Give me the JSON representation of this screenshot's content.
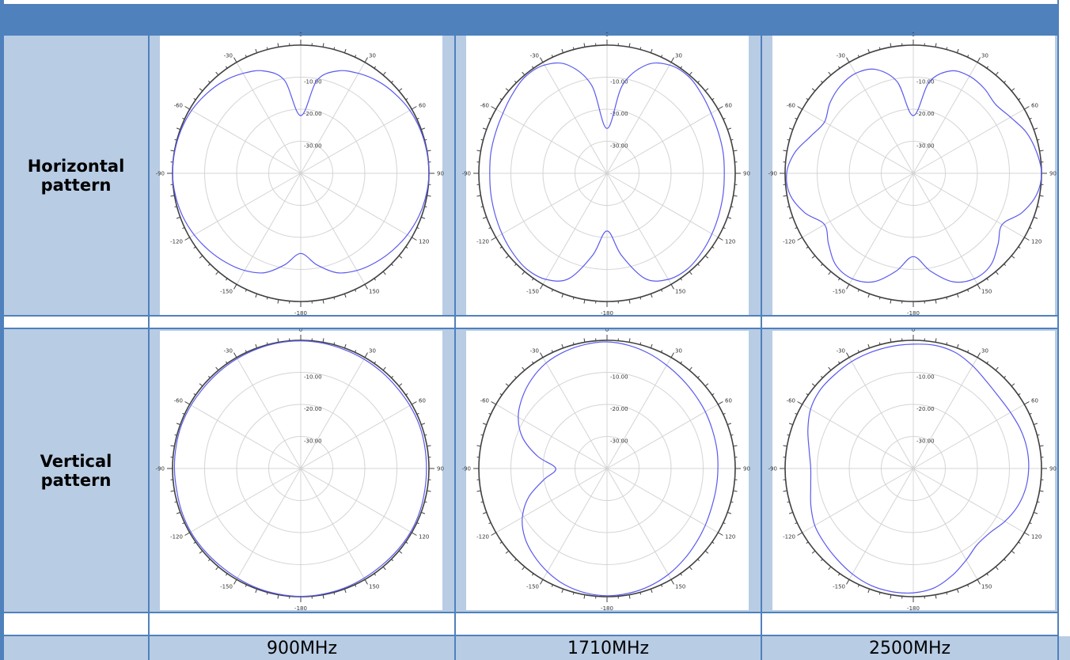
{
  "rows": [
    {
      "label": "Horizontal\npattern"
    },
    {
      "label": "Vertical\npattern"
    }
  ],
  "columns": [
    {
      "frequency": "900MHz"
    },
    {
      "frequency": "1710MHz"
    },
    {
      "frequency": "2500MHz"
    }
  ],
  "colors": {
    "header": "#4f81bd",
    "cell": "#b8cce4",
    "grid": "#4f81bd",
    "trace": "#5a5aee",
    "polar_grid": "#d4d4d4",
    "outer_circle": "#404040"
  },
  "chart_data": [
    {
      "type": "polar",
      "row": "Horizontal pattern",
      "column": "900MHz",
      "rlim": [
        -40,
        0
      ],
      "ring_labels": [
        "-10.00",
        "-20.00",
        "-30.00"
      ],
      "angle_labels": [
        "0",
        "30",
        "60",
        "90",
        "120",
        "150",
        "-180",
        "-150",
        "-120",
        "-90",
        "-60",
        "-30"
      ],
      "angles": [
        0,
        10,
        20,
        30,
        40,
        50,
        60,
        70,
        80,
        90,
        100,
        110,
        120,
        130,
        140,
        150,
        160,
        170,
        180,
        190,
        200,
        210,
        220,
        230,
        240,
        250,
        260,
        270,
        280,
        290,
        300,
        310,
        320,
        330,
        340,
        350
      ],
      "values": [
        -22,
        -10.5,
        -6,
        -4,
        -2.5,
        -1.5,
        -0.7,
        -0.3,
        -0.1,
        0,
        -0.3,
        -0.8,
        -1.6,
        -2.6,
        -3.7,
        -5,
        -7,
        -11,
        -15,
        -11,
        -7,
        -5,
        -3.7,
        -2.6,
        -1.6,
        -0.8,
        -0.3,
        0,
        -0.1,
        -0.3,
        -0.7,
        -1.5,
        -2.5,
        -4,
        -6,
        -10.5
      ]
    },
    {
      "type": "polar",
      "row": "Horizontal pattern",
      "column": "1710MHz",
      "rlim": [
        -40,
        0
      ],
      "ring_labels": [
        "-10.00",
        "-20.00",
        "-30.00"
      ],
      "angle_labels": [
        "0",
        "30",
        "60",
        "90",
        "120",
        "150",
        "-180",
        "-150",
        "-120",
        "-90",
        "-60",
        "-30"
      ],
      "angles": [
        0,
        10,
        20,
        30,
        40,
        50,
        60,
        70,
        80,
        90,
        100,
        110,
        120,
        130,
        140,
        150,
        160,
        170,
        180,
        190,
        200,
        210,
        220,
        230,
        240,
        250,
        260,
        270,
        280,
        290,
        300,
        310,
        320,
        330,
        340,
        350
      ],
      "values": [
        -26,
        -12,
        -4,
        -1,
        -0.5,
        -1.5,
        -2.5,
        -3,
        -3.2,
        -3.4,
        -3.2,
        -2.8,
        -2.2,
        -1.5,
        -1,
        -1.8,
        -5,
        -14,
        -22,
        -14,
        -5,
        -1.8,
        -1,
        -1.5,
        -2.2,
        -2.8,
        -3.2,
        -3.4,
        -3.2,
        -3,
        -2.5,
        -1.5,
        -0.5,
        -1,
        -4,
        -12
      ]
    },
    {
      "type": "polar",
      "row": "Horizontal pattern",
      "column": "2500MHz",
      "rlim": [
        -40,
        0
      ],
      "ring_labels": [
        "-10.00",
        "-20.00",
        "-30.00"
      ],
      "angle_labels": [
        "0",
        "30",
        "60",
        "90",
        "120",
        "150",
        "-180",
        "-150",
        "-120",
        "-90",
        "-60",
        "-30"
      ],
      "angles": [
        0,
        10,
        20,
        30,
        40,
        50,
        60,
        70,
        80,
        90,
        100,
        110,
        120,
        130,
        140,
        150,
        160,
        170,
        180,
        190,
        200,
        210,
        220,
        230,
        240,
        250,
        260,
        270,
        280,
        290,
        300,
        310,
        320,
        330,
        340,
        350
      ],
      "values": [
        -22,
        -11,
        -6,
        -5,
        -5.5,
        -6.5,
        -5,
        -2.5,
        -1,
        0,
        -1,
        -4,
        -8,
        -5.5,
        -2.5,
        -2,
        -4,
        -9,
        -14,
        -9,
        -4,
        -2,
        -2.5,
        -5.5,
        -8,
        -4,
        -1,
        -0.5,
        -2.5,
        -6,
        -8,
        -6,
        -4.5,
        -4,
        -5.5,
        -11
      ]
    },
    {
      "type": "polar",
      "row": "Vertical pattern",
      "column": "900MHz",
      "rlim": [
        -40,
        0
      ],
      "ring_labels": [
        "-10.00",
        "-20.00",
        "-30.00"
      ],
      "angle_labels": [
        "0",
        "30",
        "60",
        "90",
        "120",
        "150",
        "-180",
        "-150",
        "-120",
        "-90",
        "-60",
        "-30"
      ],
      "angles": [
        0,
        10,
        20,
        30,
        40,
        50,
        60,
        70,
        80,
        90,
        100,
        110,
        120,
        130,
        140,
        150,
        160,
        170,
        180,
        190,
        200,
        210,
        220,
        230,
        240,
        250,
        260,
        270,
        280,
        290,
        300,
        310,
        320,
        330,
        340,
        350
      ],
      "values": [
        -0.2,
        -0.3,
        -0.5,
        -0.6,
        -0.7,
        -0.8,
        -0.7,
        -0.6,
        -0.7,
        -0.8,
        -0.7,
        -0.5,
        -0.4,
        -0.5,
        -0.6,
        -0.5,
        -0.3,
        -0.2,
        -0.1,
        -0.2,
        -0.3,
        -0.5,
        -0.6,
        -0.5,
        -0.4,
        -0.5,
        -0.7,
        -0.6,
        -0.5,
        -0.4,
        -0.5,
        -0.6,
        -0.5,
        -0.4,
        -0.3,
        -0.2
      ]
    },
    {
      "type": "polar",
      "row": "Vertical pattern",
      "column": "1710MHz",
      "rlim": [
        -40,
        0
      ],
      "ring_labels": [
        "-10.00",
        "-20.00",
        "-30.00"
      ],
      "angle_labels": [
        "0",
        "30",
        "60",
        "90",
        "120",
        "150",
        "-180",
        "-150",
        "-120",
        "-90",
        "-60",
        "-30"
      ],
      "angles": [
        0,
        10,
        20,
        30,
        40,
        50,
        60,
        70,
        80,
        90,
        100,
        110,
        120,
        130,
        140,
        150,
        160,
        170,
        180,
        190,
        200,
        210,
        220,
        230,
        240,
        250,
        260,
        270,
        280,
        290,
        300,
        310,
        320,
        330,
        340,
        350
      ],
      "values": [
        -0.5,
        -1,
        -1.8,
        -2.8,
        -3.6,
        -4.2,
        -4.6,
        -5,
        -5.2,
        -5.4,
        -5.4,
        -5.2,
        -4.6,
        -3.8,
        -2.8,
        -1.8,
        -1,
        -0.5,
        -0.3,
        -0.6,
        -1.4,
        -2.8,
        -4.5,
        -6.5,
        -9.5,
        -14,
        -20,
        -24,
        -18,
        -12,
        -8,
        -5.5,
        -3.5,
        -2,
        -1.2,
        -0.7
      ]
    },
    {
      "type": "polar",
      "row": "Vertical pattern",
      "column": "2500MHz",
      "rlim": [
        -40,
        0
      ],
      "ring_labels": [
        "-10.00",
        "-20.00",
        "-30.00"
      ],
      "angle_labels": [
        "0",
        "30",
        "60",
        "90",
        "120",
        "150",
        "-180",
        "-150",
        "-120",
        "-90",
        "-60",
        "-30"
      ],
      "angles": [
        0,
        10,
        20,
        30,
        40,
        50,
        60,
        70,
        80,
        90,
        100,
        110,
        120,
        130,
        140,
        150,
        160,
        170,
        180,
        190,
        200,
        210,
        220,
        230,
        240,
        250,
        260,
        270,
        280,
        290,
        300,
        310,
        320,
        330,
        340,
        350
      ],
      "values": [
        -1.2,
        -1,
        -1.5,
        -3,
        -4.5,
        -5.2,
        -5,
        -4.4,
        -4,
        -4,
        -4.4,
        -5.4,
        -7,
        -8.8,
        -9,
        -7,
        -4.5,
        -2.2,
        -1.2,
        -1,
        -1.2,
        -2,
        -3,
        -3.8,
        -4.5,
        -6,
        -7.5,
        -8,
        -7,
        -5,
        -3,
        -2,
        -1.8,
        -1.5,
        -1.4,
        -1.3
      ]
    }
  ]
}
